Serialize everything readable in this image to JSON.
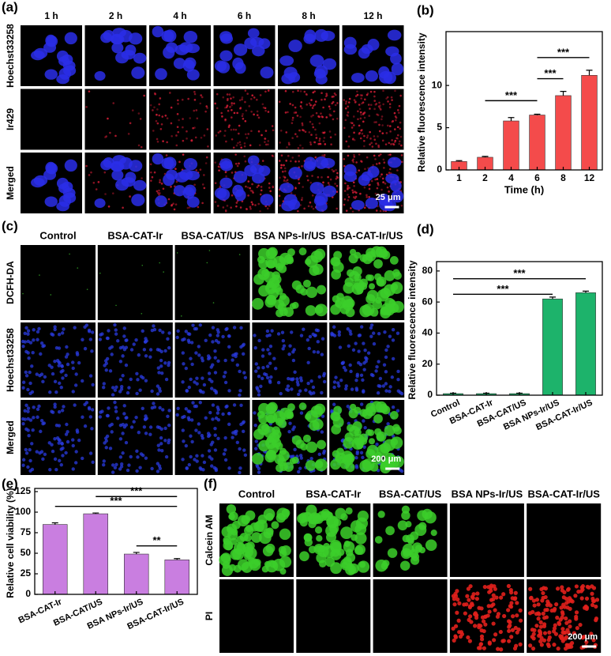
{
  "figure": {
    "a": {
      "label": "(a)",
      "columns": [
        "1 h",
        "2 h",
        "4 h",
        "6 h",
        "8 h",
        "12 h"
      ],
      "rows": [
        "Hoechst33258",
        "Ir429",
        "Merged"
      ],
      "scale_bar": "25 μm"
    },
    "c": {
      "label": "(c)",
      "columns": [
        "Control",
        "BSA-CAT-Ir",
        "BSA-CAT/US",
        "BSA NPs-Ir/US",
        "BSA-CAT-Ir/US"
      ],
      "rows": [
        "DCFH-DA",
        "Hoechst33258",
        "Merged"
      ],
      "scale_bar": "200 μm"
    },
    "f": {
      "label": "(f)",
      "columns": [
        "Control",
        "BSA-CAT-Ir",
        "BSA-CAT/US",
        "BSA NPs-Ir/US",
        "BSA-CAT-Ir/US"
      ],
      "rows": [
        "Calcein AM",
        "PI"
      ],
      "scale_bar": "200 μm"
    }
  },
  "chart_data": [
    {
      "type": "bar",
      "panel_label": "(b)",
      "categories": [
        "1",
        "2",
        "4",
        "6",
        "8",
        "12"
      ],
      "values": [
        1.0,
        1.5,
        5.8,
        6.5,
        8.8,
        11.2
      ],
      "errors": [
        0.1,
        0.1,
        0.4,
        0.1,
        0.5,
        0.6
      ],
      "color": "#f44b4b",
      "xlabel": "Time (h)",
      "ylabel": "Relative fluorescence intensity",
      "ylim": [
        0,
        16
      ],
      "yticks": [
        0,
        5,
        10
      ],
      "annotations": [
        {
          "from": 1,
          "to": 3,
          "y": 8.2,
          "label": "***"
        },
        {
          "from": 3,
          "to": 4,
          "y": 10.8,
          "label": "***"
        },
        {
          "from": 3,
          "to": 5,
          "y": 13.3,
          "label": "***"
        }
      ]
    },
    {
      "type": "bar",
      "panel_label": "(d)",
      "categories": [
        "Control",
        "BSA-CAT-Ir",
        "BSA-CAT/US",
        "BSA NPs-Ir/US",
        "BSA-CAT-Ir/US"
      ],
      "values": [
        1,
        1,
        1,
        62,
        66
      ],
      "errors": [
        0.3,
        0.3,
        0.3,
        1.2,
        1.0
      ],
      "color": "#1db36b",
      "ylabel": "Relative fluorescence intensity",
      "ylim": [
        0,
        84
      ],
      "yticks": [
        0,
        20,
        40,
        60,
        80
      ],
      "annotations": [
        {
          "from": 0,
          "to": 3,
          "y": 65,
          "label": "***"
        },
        {
          "from": 0,
          "to": 4,
          "y": 75,
          "label": "***"
        }
      ]
    },
    {
      "type": "bar",
      "panel_label": "(e)",
      "categories": [
        "BSA-CAT-Ir",
        "BSA-CAT/US",
        "BSA NPs-Ir/US",
        "BSA-CAT-Ir/US"
      ],
      "values": [
        85,
        98,
        49,
        42
      ],
      "errors": [
        2,
        1,
        2,
        1.5
      ],
      "color": "#c97ee0",
      "ylabel": "Relative cell viability (%)",
      "ylim": [
        0,
        125
      ],
      "yticks": [
        0,
        25,
        50,
        75,
        100,
        125
      ],
      "annotations": [
        {
          "from": 1,
          "to": 3,
          "y": 119,
          "label": "***"
        },
        {
          "from": 0,
          "to": 3,
          "y": 107,
          "label": "***"
        },
        {
          "from": 2,
          "to": 3,
          "y": 59,
          "label": "**"
        }
      ]
    }
  ]
}
